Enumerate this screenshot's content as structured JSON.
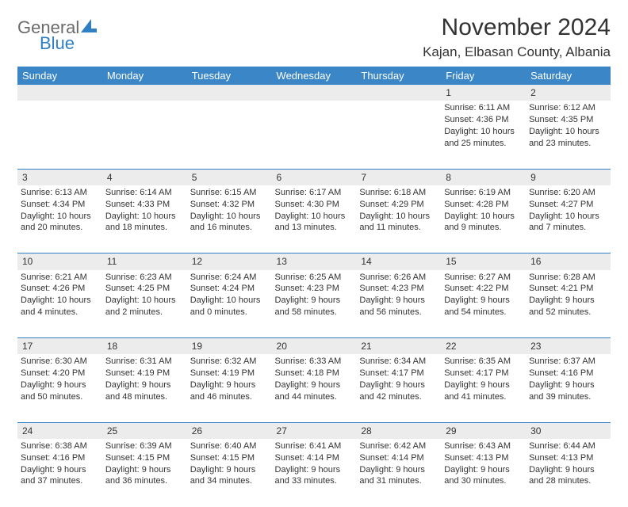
{
  "brand": {
    "top": "General",
    "bottom": "Blue"
  },
  "title": "November 2024",
  "location": "Kajan, Elbasan County, Albania",
  "colors": {
    "header_bg": "#3b86c7",
    "accent": "#2f7fc2",
    "daynum_bg": "#ececec",
    "text": "#333333",
    "logo_gray": "#6b6b6b"
  },
  "weekdays": [
    "Sunday",
    "Monday",
    "Tuesday",
    "Wednesday",
    "Thursday",
    "Friday",
    "Saturday"
  ],
  "weeks": [
    [
      null,
      null,
      null,
      null,
      null,
      {
        "n": "1",
        "sr": "6:11 AM",
        "ss": "4:36 PM",
        "dl": "10 hours and 25 minutes."
      },
      {
        "n": "2",
        "sr": "6:12 AM",
        "ss": "4:35 PM",
        "dl": "10 hours and 23 minutes."
      }
    ],
    [
      {
        "n": "3",
        "sr": "6:13 AM",
        "ss": "4:34 PM",
        "dl": "10 hours and 20 minutes."
      },
      {
        "n": "4",
        "sr": "6:14 AM",
        "ss": "4:33 PM",
        "dl": "10 hours and 18 minutes."
      },
      {
        "n": "5",
        "sr": "6:15 AM",
        "ss": "4:32 PM",
        "dl": "10 hours and 16 minutes."
      },
      {
        "n": "6",
        "sr": "6:17 AM",
        "ss": "4:30 PM",
        "dl": "10 hours and 13 minutes."
      },
      {
        "n": "7",
        "sr": "6:18 AM",
        "ss": "4:29 PM",
        "dl": "10 hours and 11 minutes."
      },
      {
        "n": "8",
        "sr": "6:19 AM",
        "ss": "4:28 PM",
        "dl": "10 hours and 9 minutes."
      },
      {
        "n": "9",
        "sr": "6:20 AM",
        "ss": "4:27 PM",
        "dl": "10 hours and 7 minutes."
      }
    ],
    [
      {
        "n": "10",
        "sr": "6:21 AM",
        "ss": "4:26 PM",
        "dl": "10 hours and 4 minutes."
      },
      {
        "n": "11",
        "sr": "6:23 AM",
        "ss": "4:25 PM",
        "dl": "10 hours and 2 minutes."
      },
      {
        "n": "12",
        "sr": "6:24 AM",
        "ss": "4:24 PM",
        "dl": "10 hours and 0 minutes."
      },
      {
        "n": "13",
        "sr": "6:25 AM",
        "ss": "4:23 PM",
        "dl": "9 hours and 58 minutes."
      },
      {
        "n": "14",
        "sr": "6:26 AM",
        "ss": "4:23 PM",
        "dl": "9 hours and 56 minutes."
      },
      {
        "n": "15",
        "sr": "6:27 AM",
        "ss": "4:22 PM",
        "dl": "9 hours and 54 minutes."
      },
      {
        "n": "16",
        "sr": "6:28 AM",
        "ss": "4:21 PM",
        "dl": "9 hours and 52 minutes."
      }
    ],
    [
      {
        "n": "17",
        "sr": "6:30 AM",
        "ss": "4:20 PM",
        "dl": "9 hours and 50 minutes."
      },
      {
        "n": "18",
        "sr": "6:31 AM",
        "ss": "4:19 PM",
        "dl": "9 hours and 48 minutes."
      },
      {
        "n": "19",
        "sr": "6:32 AM",
        "ss": "4:19 PM",
        "dl": "9 hours and 46 minutes."
      },
      {
        "n": "20",
        "sr": "6:33 AM",
        "ss": "4:18 PM",
        "dl": "9 hours and 44 minutes."
      },
      {
        "n": "21",
        "sr": "6:34 AM",
        "ss": "4:17 PM",
        "dl": "9 hours and 42 minutes."
      },
      {
        "n": "22",
        "sr": "6:35 AM",
        "ss": "4:17 PM",
        "dl": "9 hours and 41 minutes."
      },
      {
        "n": "23",
        "sr": "6:37 AM",
        "ss": "4:16 PM",
        "dl": "9 hours and 39 minutes."
      }
    ],
    [
      {
        "n": "24",
        "sr": "6:38 AM",
        "ss": "4:16 PM",
        "dl": "9 hours and 37 minutes."
      },
      {
        "n": "25",
        "sr": "6:39 AM",
        "ss": "4:15 PM",
        "dl": "9 hours and 36 minutes."
      },
      {
        "n": "26",
        "sr": "6:40 AM",
        "ss": "4:15 PM",
        "dl": "9 hours and 34 minutes."
      },
      {
        "n": "27",
        "sr": "6:41 AM",
        "ss": "4:14 PM",
        "dl": "9 hours and 33 minutes."
      },
      {
        "n": "28",
        "sr": "6:42 AM",
        "ss": "4:14 PM",
        "dl": "9 hours and 31 minutes."
      },
      {
        "n": "29",
        "sr": "6:43 AM",
        "ss": "4:13 PM",
        "dl": "9 hours and 30 minutes."
      },
      {
        "n": "30",
        "sr": "6:44 AM",
        "ss": "4:13 PM",
        "dl": "9 hours and 28 minutes."
      }
    ]
  ],
  "labels": {
    "sunrise": "Sunrise: ",
    "sunset": "Sunset: ",
    "daylight": "Daylight: "
  }
}
